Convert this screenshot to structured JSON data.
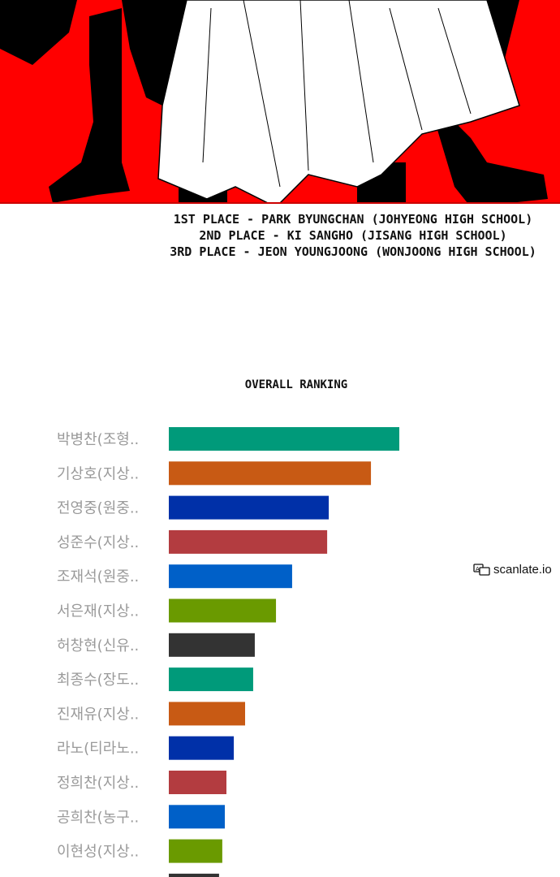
{
  "captions": [
    "1ST PLACE - PARK BYUNGCHAN (JOHYEONG HIGH SCHOOL)",
    "2ND PLACE - KI SANGHO (JISANG HIGH SCHOOL)",
    "3RD PLACE - JEON YOUNGJOONG (WONJOONG HIGH SCHOOL)"
  ],
  "watermark": {
    "text": "scanlate.io",
    "icon": "translate-icon"
  },
  "colors": {
    "panel_bg": "#ff0000",
    "label": "#9a9a9a"
  },
  "chart_data": {
    "type": "bar",
    "orientation": "horizontal",
    "title": "OVERALL RANKING",
    "unit": "percent of top bar",
    "grid": false,
    "categories": [
      "박병찬(조형..",
      "기상호(지상..",
      "전영중(원중..",
      "성준수(지상..",
      "조재석(원중..",
      "서은재(지상..",
      "허창현(신유..",
      "최종수(장도..",
      "진재유(지상..",
      "라노(티라노..",
      "정희찬(지상..",
      "공희찬(농구..",
      "이현성(지상..",
      ""
    ],
    "values": [
      100,
      87.7,
      69.4,
      68.7,
      53.5,
      46.5,
      37.3,
      36.6,
      33.1,
      28.2,
      25.0,
      24.3,
      23.2,
      21.8
    ],
    "bar_colors": [
      "#009a7a",
      "#c85a14",
      "#0030a8",
      "#b33c40",
      "#0060c8",
      "#6a9a00",
      "#333333",
      "#009a7a",
      "#c85a14",
      "#0030a8",
      "#b33c40",
      "#0060c8",
      "#6a9a00",
      "#333333"
    ]
  }
}
